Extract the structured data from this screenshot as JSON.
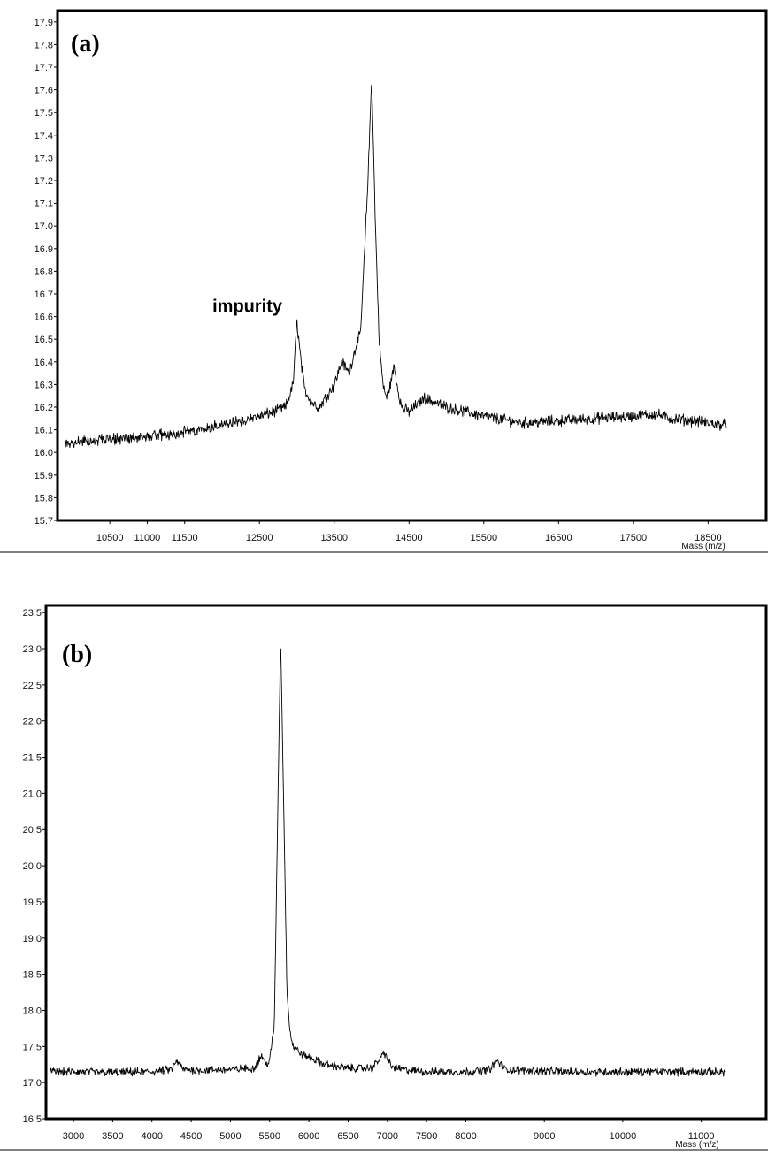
{
  "chart_data": [
    {
      "type": "line",
      "panel_label": "(a)",
      "xlabel": "Mass (m/z)",
      "xlim": [
        9800,
        19300
      ],
      "ylim": [
        15.7,
        17.95
      ],
      "x_ticks": [
        10500,
        11000,
        11500,
        12500,
        13500,
        14500,
        15500,
        16500,
        17500,
        18500
      ],
      "x_tick_labels": [
        "10500",
        "11000",
        "11500",
        "12500",
        "13500",
        "14500",
        "15500",
        "16500",
        "17500",
        "18500"
      ],
      "y_ticks": [
        15.7,
        15.8,
        15.9,
        16.0,
        16.1,
        16.2,
        16.3,
        16.4,
        16.5,
        16.6,
        16.7,
        16.8,
        16.9,
        17.0,
        17.1,
        17.2,
        17.3,
        17.4,
        17.5,
        17.6,
        17.7,
        17.8,
        17.9
      ],
      "y_tick_labels": [
        "15.7",
        "15.8",
        "15.9",
        "16.0",
        "16.1",
        "16.2",
        "16.3",
        "16.4",
        "16.5",
        "16.6",
        "16.7",
        "16.8",
        "16.9",
        "17.0",
        "17.1",
        "17.2",
        "17.3",
        "17.4",
        "17.5",
        "17.6",
        "17.7",
        "17.8",
        "17.9"
      ],
      "annotations": [
        {
          "text": "impurity",
          "x": 12900,
          "y": 16.62
        }
      ],
      "series": [
        {
          "x": [
            9900,
            10200,
            10500,
            10800,
            11000,
            11300,
            11500,
            11800,
            12000,
            12300,
            12500,
            12700,
            12850,
            12950,
            13000,
            13050,
            13100,
            13200,
            13300,
            13400,
            13500,
            13600,
            13700,
            13750,
            13800,
            13850,
            13900,
            13950,
            14000,
            14050,
            14100,
            14150,
            14200,
            14250,
            14300,
            14350,
            14400,
            14500,
            14700,
            15000,
            15500,
            16000,
            16500,
            17000,
            17500,
            17800,
            18000,
            18300,
            18500,
            18750
          ],
          "y": [
            16.04,
            16.05,
            16.06,
            16.06,
            16.07,
            16.08,
            16.09,
            16.11,
            16.12,
            16.14,
            16.16,
            16.18,
            16.2,
            16.3,
            16.58,
            16.42,
            16.28,
            16.22,
            16.2,
            16.25,
            16.3,
            16.4,
            16.35,
            16.42,
            16.48,
            16.52,
            16.85,
            17.2,
            17.66,
            17.0,
            16.5,
            16.3,
            16.24,
            16.3,
            16.38,
            16.28,
            16.2,
            16.18,
            16.24,
            16.2,
            16.16,
            16.13,
            16.14,
            16.15,
            16.16,
            16.17,
            16.15,
            16.14,
            16.13,
            16.12
          ]
        }
      ]
    },
    {
      "type": "line",
      "panel_label": "(b)",
      "xlabel": "Mass (m/z)",
      "xlim": [
        2650,
        11850
      ],
      "ylim": [
        16.5,
        23.6
      ],
      "x_ticks": [
        3000,
        3500,
        4000,
        4500,
        5000,
        5500,
        6000,
        6500,
        7000,
        7500,
        8000,
        9000,
        10000,
        11000
      ],
      "x_tick_labels": [
        "3000",
        "3500",
        "4000",
        "4500",
        "5000",
        "5500",
        "6000",
        "6500",
        "7000",
        "7500",
        "8000",
        "9000",
        "10000",
        "11000"
      ],
      "y_ticks": [
        16.5,
        17.0,
        17.5,
        18.0,
        18.5,
        19.0,
        19.5,
        20.0,
        20.5,
        21.0,
        21.5,
        22.0,
        22.5,
        23.0,
        23.5
      ],
      "y_tick_labels": [
        "16.5",
        "17.0",
        "17.5",
        "18.0",
        "18.5",
        "19.0",
        "19.5",
        "20.0",
        "20.5",
        "21.0",
        "21.5",
        "22.0",
        "22.5",
        "23.0",
        "23.5"
      ],
      "series": [
        {
          "x": [
            2700,
            3000,
            3500,
            4000,
            4250,
            4320,
            4400,
            4700,
            5000,
            5300,
            5400,
            5450,
            5500,
            5560,
            5600,
            5640,
            5680,
            5720,
            5760,
            5800,
            5900,
            6000,
            6200,
            6500,
            6800,
            6900,
            6960,
            7050,
            7200,
            7500,
            8000,
            8300,
            8400,
            8500,
            9000,
            9500,
            10000,
            10500,
            11000,
            11300
          ],
          "y": [
            17.15,
            17.15,
            17.14,
            17.15,
            17.18,
            17.3,
            17.18,
            17.17,
            17.18,
            17.2,
            17.38,
            17.25,
            17.3,
            17.8,
            20.5,
            23.2,
            20.8,
            18.3,
            17.7,
            17.5,
            17.4,
            17.35,
            17.25,
            17.2,
            17.2,
            17.32,
            17.42,
            17.22,
            17.18,
            17.15,
            17.15,
            17.18,
            17.3,
            17.18,
            17.16,
            17.15,
            17.15,
            17.15,
            17.15,
            17.15
          ]
        }
      ]
    }
  ]
}
